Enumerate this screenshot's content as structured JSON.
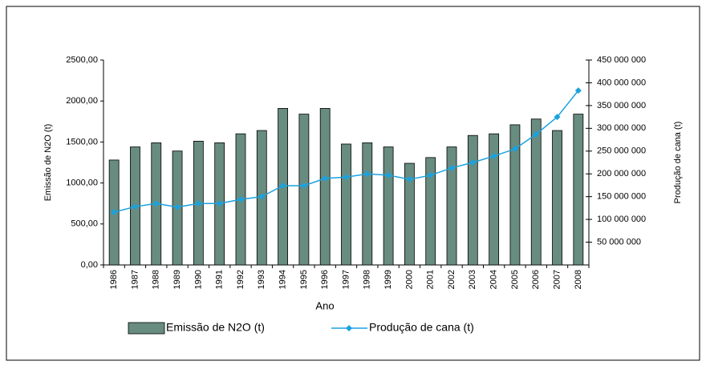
{
  "chart_data": {
    "type": "bar-line",
    "x_label": "Ano",
    "y_label": "Emissão de N2O (t)",
    "y2_label": "Produção de cana (t)",
    "categories": [
      "1986",
      "1987",
      "1988",
      "1989",
      "1990",
      "1991",
      "1992",
      "1993",
      "1994",
      "1995",
      "1996",
      "1997",
      "1998",
      "1999",
      "2000",
      "2001",
      "2002",
      "2003",
      "2004",
      "2005",
      "2006",
      "2007",
      "2008"
    ],
    "series": [
      {
        "name": "Emissão de N2O (t)",
        "type": "bar",
        "color": "#688c7f",
        "values": [
          1280,
          1440,
          1490,
          1390,
          1510,
          1490,
          1600,
          1640,
          1910,
          1840,
          1910,
          1475,
          1490,
          1440,
          1240,
          1310,
          1440,
          1580,
          1600,
          1710,
          1780,
          1640,
          1840
        ]
      },
      {
        "name": "Produção de cana (t)",
        "type": "line",
        "axis": "y2",
        "color": "#1ba2de",
        "values": [
          116000000,
          128000000,
          135000000,
          127000000,
          135000000,
          135000000,
          144000000,
          150000000,
          174000000,
          174000000,
          190000000,
          193000000,
          200000000,
          197000000,
          188000000,
          197000000,
          213000000,
          225000000,
          239000000,
          255000000,
          287000000,
          325000000,
          383000000
        ]
      }
    ],
    "ylim": [
      0,
      2500
    ],
    "yticks": [
      {
        "value": 0,
        "label": "0,00"
      },
      {
        "value": 500,
        "label": "500,00"
      },
      {
        "value": 1000,
        "label": "1000,00"
      },
      {
        "value": 1500,
        "label": "1500,00"
      },
      {
        "value": 2000,
        "label": "2000,00"
      },
      {
        "value": 2500,
        "label": "2500,00"
      }
    ],
    "y2lim": [
      0,
      450000000
    ],
    "y2ticks": [
      {
        "value": 50000000,
        "label": "50 000 000"
      },
      {
        "value": 100000000,
        "label": "100 000 000"
      },
      {
        "value": 150000000,
        "label": "150 000 000"
      },
      {
        "value": 200000000,
        "label": "200 000 000"
      },
      {
        "value": 250000000,
        "label": "250 000 000"
      },
      {
        "value": 300000000,
        "label": "300 000 000"
      },
      {
        "value": 350000000,
        "label": "350 000 000"
      },
      {
        "value": 400000000,
        "label": "400 000 000"
      },
      {
        "value": 450000000,
        "label": "450 000 000"
      }
    ],
    "grid": false,
    "legend": "bottom"
  }
}
